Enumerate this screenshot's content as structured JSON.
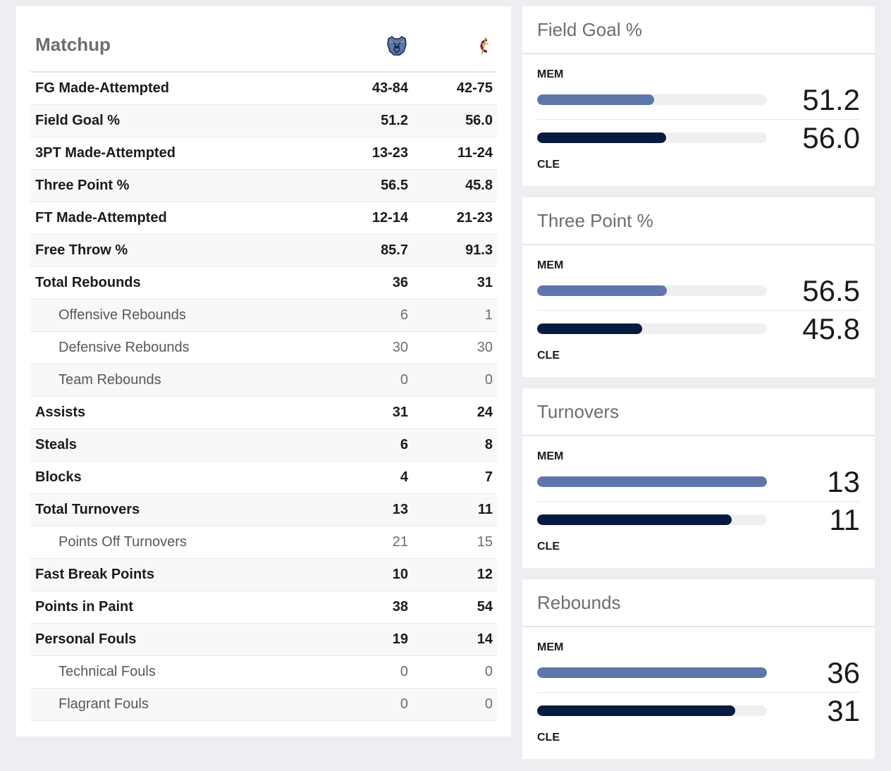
{
  "matchup": {
    "title": "Matchup",
    "teams": [
      {
        "abbr": "MEM",
        "logo_icon": "grizzlies-logo-icon",
        "color": "#5e76aa"
      },
      {
        "abbr": "CLE",
        "logo_icon": "cavaliers-logo-icon",
        "color": "#860038"
      }
    ],
    "rows": [
      {
        "label": "FG Made-Attempted",
        "mem": "43-84",
        "cle": "42-75",
        "sub": false
      },
      {
        "label": "Field Goal %",
        "mem": "51.2",
        "cle": "56.0",
        "sub": false
      },
      {
        "label": "3PT Made-Attempted",
        "mem": "13-23",
        "cle": "11-24",
        "sub": false
      },
      {
        "label": "Three Point %",
        "mem": "56.5",
        "cle": "45.8",
        "sub": false
      },
      {
        "label": "FT Made-Attempted",
        "mem": "12-14",
        "cle": "21-23",
        "sub": false
      },
      {
        "label": "Free Throw %",
        "mem": "85.7",
        "cle": "91.3",
        "sub": false
      },
      {
        "label": "Total Rebounds",
        "mem": "36",
        "cle": "31",
        "sub": false
      },
      {
        "label": "Offensive Rebounds",
        "mem": "6",
        "cle": "1",
        "sub": true
      },
      {
        "label": "Defensive Rebounds",
        "mem": "30",
        "cle": "30",
        "sub": true
      },
      {
        "label": "Team Rebounds",
        "mem": "0",
        "cle": "0",
        "sub": true
      },
      {
        "label": "Assists",
        "mem": "31",
        "cle": "24",
        "sub": false
      },
      {
        "label": "Steals",
        "mem": "6",
        "cle": "8",
        "sub": false
      },
      {
        "label": "Blocks",
        "mem": "4",
        "cle": "7",
        "sub": false
      },
      {
        "label": "Total Turnovers",
        "mem": "13",
        "cle": "11",
        "sub": false
      },
      {
        "label": "Points Off Turnovers",
        "mem": "21",
        "cle": "15",
        "sub": true
      },
      {
        "label": "Fast Break Points",
        "mem": "10",
        "cle": "12",
        "sub": false
      },
      {
        "label": "Points in Paint",
        "mem": "38",
        "cle": "54",
        "sub": false
      },
      {
        "label": "Personal Fouls",
        "mem": "19",
        "cle": "14",
        "sub": false
      },
      {
        "label": "Technical Fouls",
        "mem": "0",
        "cle": "0",
        "sub": true
      },
      {
        "label": "Flagrant Fouls",
        "mem": "0",
        "cle": "0",
        "sub": true
      }
    ]
  },
  "comparisons": [
    {
      "title": "Field Goal %",
      "top_team": "MEM",
      "bottom_team": "CLE",
      "mem": "51.2",
      "cle": "56.0",
      "mem_fill": 0.51,
      "cle_fill": 0.56
    },
    {
      "title": "Three Point %",
      "top_team": "MEM",
      "bottom_team": "CLE",
      "mem": "56.5",
      "cle": "45.8",
      "mem_fill": 0.565,
      "cle_fill": 0.458
    },
    {
      "title": "Turnovers",
      "top_team": "MEM",
      "bottom_team": "CLE",
      "mem": "13",
      "cle": "11",
      "mem_fill": 1.0,
      "cle_fill": 0.846
    },
    {
      "title": "Rebounds",
      "top_team": "MEM",
      "bottom_team": "CLE",
      "mem": "36",
      "cle": "31",
      "mem_fill": 1.0,
      "cle_fill": 0.861
    }
  ],
  "colors": {
    "mem_bar": "#5e76aa",
    "cle_bar": "#071a3f",
    "track": "#efeff1"
  }
}
